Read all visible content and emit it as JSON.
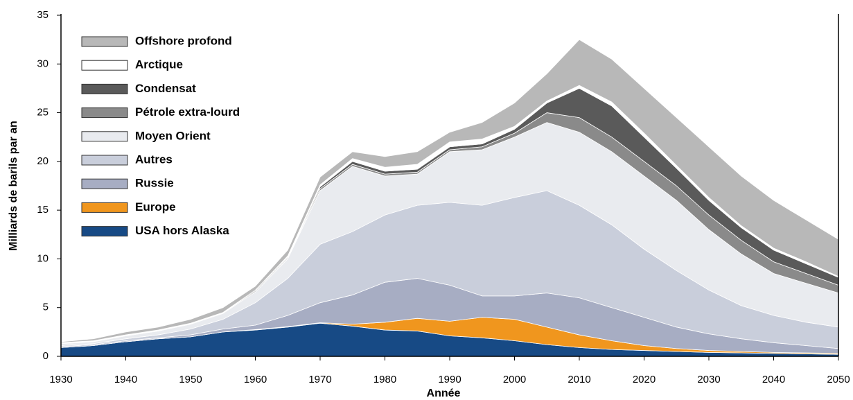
{
  "chart_data": {
    "type": "stacked_area",
    "x_label": "Année",
    "y_label": "Milliards de barils par an",
    "x": [
      1930,
      1935,
      1940,
      1945,
      1950,
      1955,
      1960,
      1965,
      1970,
      1975,
      1980,
      1985,
      1990,
      1995,
      2000,
      2005,
      2010,
      2015,
      2020,
      2025,
      2030,
      2035,
      2040,
      2045,
      2050
    ],
    "series": [
      {
        "name": "USA hors Alaska",
        "color": "#174a85",
        "values": [
          0.9,
          1.1,
          1.5,
          1.8,
          2.0,
          2.5,
          2.7,
          3.0,
          3.4,
          3.1,
          2.7,
          2.6,
          2.1,
          1.9,
          1.6,
          1.2,
          0.9,
          0.7,
          0.6,
          0.5,
          0.4,
          0.35,
          0.3,
          0.25,
          0.2
        ]
      },
      {
        "name": "Europe",
        "color": "#f0961e",
        "values": [
          0,
          0,
          0,
          0,
          0,
          0,
          0.05,
          0.05,
          0.05,
          0.2,
          0.8,
          1.3,
          1.5,
          2.1,
          2.2,
          1.8,
          1.3,
          0.9,
          0.5,
          0.3,
          0.2,
          0.15,
          0.1,
          0.1,
          0.1
        ]
      },
      {
        "name": "Russie",
        "color": "#a7adc3",
        "values": [
          0.1,
          0.1,
          0.1,
          0.1,
          0.2,
          0.3,
          0.45,
          1.15,
          2.05,
          3.0,
          4.1,
          4.1,
          3.7,
          2.2,
          2.4,
          3.5,
          3.8,
          3.4,
          2.9,
          2.2,
          1.7,
          1.3,
          1.0,
          0.75,
          0.5
        ]
      },
      {
        "name": "Autres",
        "color": "#c9cedb",
        "values": [
          0.1,
          0.1,
          0.2,
          0.3,
          0.6,
          1.0,
          2.3,
          3.8,
          6.0,
          6.5,
          6.9,
          7.5,
          8.5,
          9.3,
          10.1,
          10.5,
          9.5,
          8.5,
          7.0,
          5.8,
          4.5,
          3.4,
          2.8,
          2.4,
          2.2
        ]
      },
      {
        "name": "Moyen Orient",
        "color": "#e9ebef",
        "values": [
          0.2,
          0.2,
          0.3,
          0.4,
          0.5,
          0.6,
          1.1,
          2.0,
          5.5,
          6.7,
          4.0,
          3.2,
          5.2,
          5.7,
          6.2,
          7.0,
          7.5,
          7.5,
          7.5,
          7.2,
          6.2,
          5.3,
          4.3,
          4.0,
          3.5
        ]
      },
      {
        "name": "Pétrole extra-lourd",
        "color": "#8a8a8a",
        "values": [
          0.05,
          0.05,
          0.05,
          0.05,
          0.05,
          0.05,
          0.1,
          0.1,
          0.2,
          0.2,
          0.2,
          0.2,
          0.2,
          0.3,
          0.4,
          1.0,
          1.5,
          1.5,
          1.5,
          1.5,
          1.5,
          1.4,
          1.2,
          1.0,
          0.8
        ]
      },
      {
        "name": "Condensat",
        "color": "#5a5a5a",
        "values": [
          0.05,
          0.05,
          0.05,
          0.05,
          0.05,
          0.05,
          0.1,
          0.1,
          0.2,
          0.3,
          0.3,
          0.3,
          0.3,
          0.3,
          0.4,
          1.0,
          3.0,
          3.2,
          2.5,
          1.8,
          1.5,
          1.3,
          1.2,
          1.0,
          0.8
        ]
      },
      {
        "name": "Arctique",
        "color": "#ffffff",
        "values": [
          0,
          0,
          0,
          0,
          0,
          0,
          0,
          0.1,
          0.2,
          0.3,
          0.4,
          0.5,
          0.5,
          0.5,
          0.3,
          0.2,
          0.3,
          0.4,
          0.4,
          0.3,
          0.3,
          0.2,
          0.2,
          0.2,
          0.1
        ]
      },
      {
        "name": "Offshore profond",
        "color": "#b8b8b8",
        "values": [
          0.1,
          0.2,
          0.3,
          0.3,
          0.4,
          0.5,
          0.4,
          0.6,
          0.8,
          0.7,
          1.1,
          1.3,
          1.0,
          1.7,
          2.4,
          2.8,
          4.7,
          4.4,
          4.6,
          4.9,
          5.2,
          5.1,
          4.9,
          4.3,
          3.8
        ]
      }
    ],
    "xlim": [
      1930,
      2050
    ],
    "ylim": [
      0,
      35
    ],
    "xticks": [
      1930,
      1940,
      1950,
      1960,
      1970,
      1980,
      1990,
      2000,
      2010,
      2020,
      2030,
      2040,
      2050
    ],
    "yticks": [
      0,
      5,
      10,
      15,
      20,
      25,
      30,
      35
    ]
  }
}
